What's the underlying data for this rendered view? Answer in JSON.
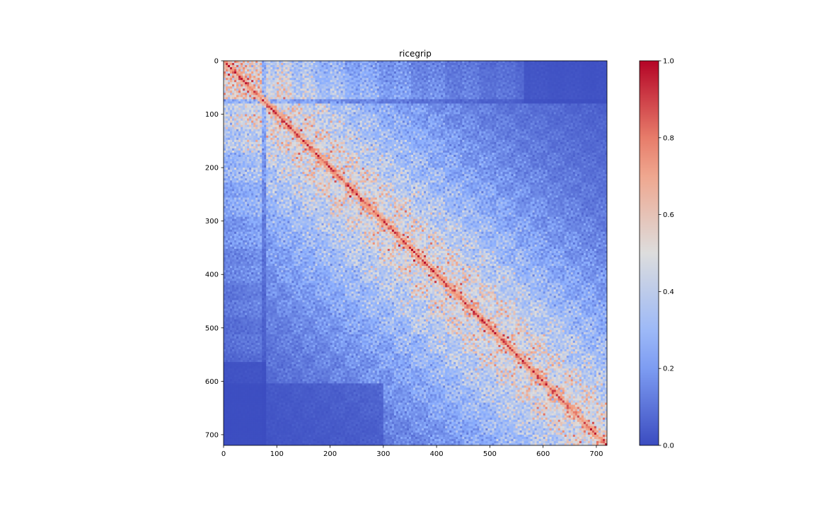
{
  "chart_data": {
    "type": "heatmap",
    "title": "ricegrip",
    "xlabel": "",
    "ylabel": "",
    "matrix_size": 720,
    "xlim": [
      0,
      720
    ],
    "ylim": [
      720,
      0
    ],
    "x_ticks": [
      0,
      100,
      200,
      300,
      400,
      500,
      600,
      700
    ],
    "y_ticks": [
      0,
      100,
      200,
      300,
      400,
      500,
      600,
      700
    ],
    "x_tick_labels": [
      "0",
      "100",
      "200",
      "300",
      "400",
      "500",
      "600",
      "700"
    ],
    "y_tick_labels": [
      "0",
      "100",
      "200",
      "300",
      "400",
      "500",
      "600",
      "700"
    ],
    "diagonal_value": 1.0,
    "value_range": [
      0.0,
      1.0
    ],
    "block_boundaries": [
      0,
      78,
      100,
      128,
      147,
      172,
      197,
      228,
      256,
      290,
      320,
      352,
      384,
      416,
      448,
      480,
      512,
      545,
      576,
      608,
      640,
      672,
      700,
      720
    ],
    "colormap": "coolwarm",
    "colorbar": {
      "min": 0.0,
      "max": 1.0,
      "ticks": [
        0.0,
        0.2,
        0.4,
        0.6,
        0.8,
        1.0
      ],
      "tick_labels": [
        "0.0",
        "0.2",
        "0.4",
        "0.6",
        "0.8",
        "1.0"
      ],
      "position": "right"
    },
    "colors": {
      "low": "#3b4cc0",
      "mid": "#dddddd",
      "high": "#b40426"
    },
    "grid": false
  }
}
